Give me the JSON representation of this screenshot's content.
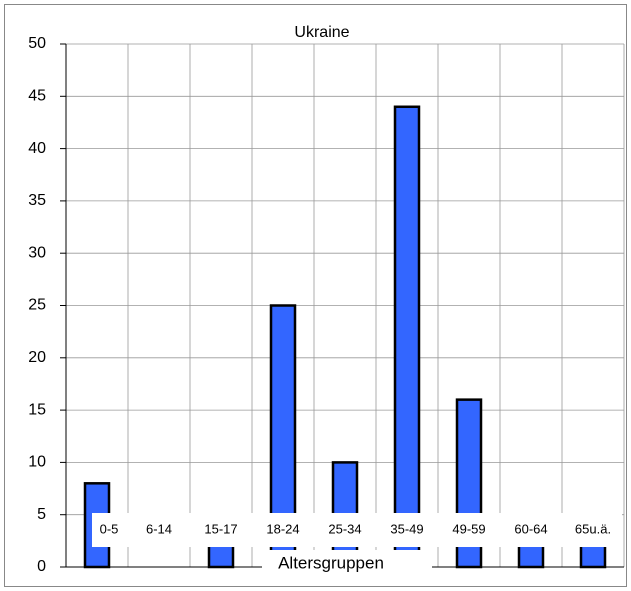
{
  "chart_data": {
    "type": "bar",
    "title": "Ukraine",
    "x_label": "Altersgruppen",
    "categories": [
      "0-5",
      "6-14",
      "15-17",
      "18-24",
      "25-34",
      "35-49",
      "49-59",
      "60-64",
      "65u.ä."
    ],
    "values": [
      8,
      0,
      3,
      25,
      10,
      44,
      16,
      3,
      3
    ],
    "color": "#3366ff",
    "ylim": [
      0,
      50
    ],
    "yticks": [
      0,
      5,
      10,
      15,
      20,
      25,
      30,
      35,
      40,
      45,
      50
    ],
    "grid": true
  }
}
